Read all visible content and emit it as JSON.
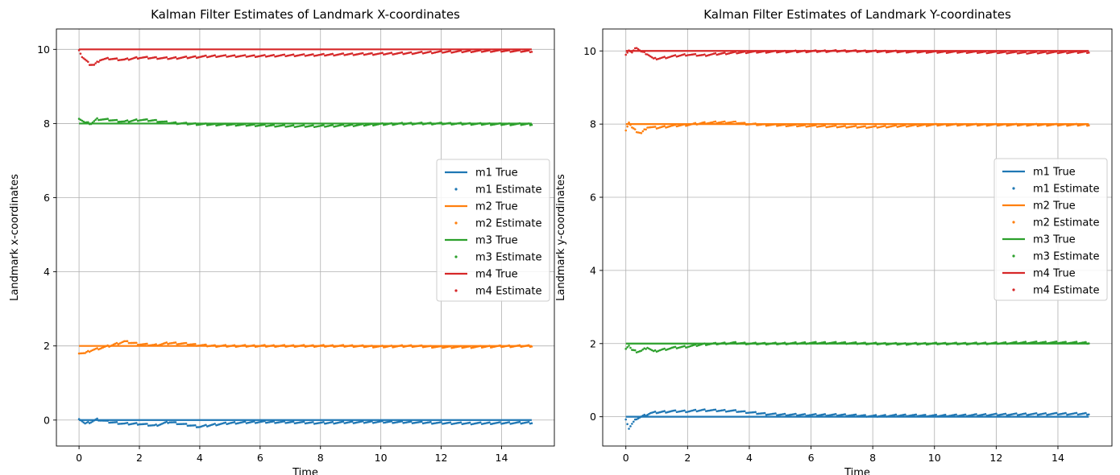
{
  "chart_data": [
    {
      "type": "scatter",
      "title": "Kalman Filter Estimates of Landmark X-coordinates",
      "xlabel": "Time",
      "ylabel": "Landmark x-coordinates",
      "xlim": [
        -0.75,
        15.75
      ],
      "ylim": [
        -0.7,
        10.55
      ],
      "xticks": [
        0,
        2,
        4,
        6,
        8,
        10,
        12,
        14
      ],
      "yticks": [
        0,
        2,
        4,
        6,
        8,
        10
      ],
      "grid": true,
      "legend_position": "center-right",
      "x_range": [
        0,
        15
      ],
      "series": [
        {
          "name": "m1 True",
          "kind": "line",
          "color": "#1f77b4",
          "value": 0
        },
        {
          "name": "m1 Estimate",
          "kind": "points",
          "color": "#1f77b4",
          "x": [
            0,
            0.2,
            0.4,
            0.6,
            1,
            1.5,
            2,
            2.5,
            3,
            3.5,
            4,
            4.5,
            5,
            6,
            7,
            8,
            9,
            10,
            11,
            12,
            13,
            14,
            15
          ],
          "y": [
            0.05,
            -0.1,
            -0.05,
            0.02,
            -0.05,
            -0.1,
            -0.1,
            -0.15,
            -0.05,
            -0.12,
            -0.18,
            -0.12,
            -0.08,
            -0.05,
            -0.06,
            -0.08,
            -0.06,
            -0.05,
            -0.06,
            -0.08,
            -0.09,
            -0.08,
            -0.07
          ]
        },
        {
          "name": "m2 True",
          "kind": "line",
          "color": "#ff7f0e",
          "value": 2
        },
        {
          "name": "m2 Estimate",
          "kind": "points",
          "color": "#ff7f0e",
          "x": [
            0,
            0.2,
            0.4,
            0.6,
            1,
            1.5,
            2,
            2.5,
            3,
            3.5,
            4,
            4.5,
            5,
            6,
            7,
            8,
            9,
            10,
            11,
            12,
            13,
            14,
            15
          ],
          "y": [
            1.82,
            1.8,
            1.88,
            1.92,
            2.0,
            2.12,
            2.05,
            2.02,
            2.08,
            2.06,
            2.02,
            2.0,
            2.0,
            2.0,
            2.0,
            2.0,
            2.0,
            1.98,
            2.0,
            1.97,
            1.97,
            1.99,
            2.0
          ]
        },
        {
          "name": "m3 True",
          "kind": "line",
          "color": "#2ca02c",
          "value": 8
        },
        {
          "name": "m3 Estimate",
          "kind": "points",
          "color": "#2ca02c",
          "x": [
            0,
            0.2,
            0.4,
            0.6,
            1,
            1.5,
            2,
            2.5,
            3,
            3.5,
            4,
            4.5,
            5,
            6,
            7,
            8,
            9,
            10,
            11,
            12,
            13,
            14,
            15
          ],
          "y": [
            8.15,
            8.02,
            8.0,
            8.12,
            8.1,
            8.05,
            8.1,
            8.08,
            8.02,
            8.0,
            7.98,
            7.97,
            7.97,
            7.95,
            7.93,
            7.93,
            7.95,
            7.98,
            8.0,
            8.0,
            7.99,
            7.98,
            7.98
          ]
        },
        {
          "name": "m4 True",
          "kind": "line",
          "color": "#d62728",
          "value": 10
        },
        {
          "name": "m4 Estimate",
          "kind": "points",
          "color": "#d62728",
          "x": [
            0,
            0.1,
            0.2,
            0.35,
            0.5,
            0.7,
            1,
            1.5,
            2,
            2.5,
            3,
            3.5,
            4,
            4.5,
            5,
            6,
            7,
            8,
            9,
            10,
            11,
            12,
            13,
            14,
            15
          ],
          "y": [
            10.0,
            9.8,
            9.72,
            9.6,
            9.58,
            9.72,
            9.75,
            9.72,
            9.78,
            9.77,
            9.76,
            9.78,
            9.8,
            9.82,
            9.82,
            9.82,
            9.84,
            9.85,
            9.87,
            9.88,
            9.9,
            9.93,
            9.95,
            9.96,
            9.95
          ]
        }
      ]
    },
    {
      "type": "scatter",
      "title": "Kalman Filter Estimates of Landmark Y-coordinates",
      "xlabel": "Time",
      "ylabel": "Landmark y-coordinates",
      "xlim": [
        -0.75,
        15.75
      ],
      "ylim": [
        -0.8,
        10.6
      ],
      "xticks": [
        0,
        2,
        4,
        6,
        8,
        10,
        12,
        14
      ],
      "yticks": [
        0,
        2,
        4,
        6,
        8,
        10
      ],
      "grid": true,
      "legend_position": "center-right",
      "x_range": [
        0,
        15
      ],
      "series": [
        {
          "name": "m1 True",
          "kind": "line",
          "color": "#1f77b4",
          "value": 0
        },
        {
          "name": "m1 Estimate",
          "kind": "points",
          "color": "#1f77b4",
          "x": [
            0,
            0.1,
            0.2,
            0.35,
            0.5,
            0.8,
            1,
            1.5,
            2,
            2.5,
            3,
            3.5,
            4,
            4.5,
            5,
            6,
            7,
            8,
            9,
            10,
            11,
            12,
            13,
            14,
            15
          ],
          "y": [
            -0.05,
            -0.32,
            -0.2,
            -0.05,
            0.0,
            0.1,
            0.12,
            0.15,
            0.15,
            0.18,
            0.17,
            0.16,
            0.12,
            0.08,
            0.06,
            0.05,
            0.05,
            0.02,
            0.04,
            0.03,
            0.04,
            0.06,
            0.07,
            0.08,
            0.08
          ]
        },
        {
          "name": "m2 True",
          "kind": "line",
          "color": "#ff7f0e",
          "value": 8
        },
        {
          "name": "m2 Estimate",
          "kind": "points",
          "color": "#ff7f0e",
          "x": [
            0,
            0.1,
            0.2,
            0.35,
            0.5,
            0.7,
            1,
            1.5,
            2,
            2.5,
            3,
            3.5,
            4,
            4.5,
            5,
            6,
            7,
            8,
            9,
            10,
            11,
            12,
            13,
            14,
            15
          ],
          "y": [
            7.85,
            8.05,
            7.9,
            7.8,
            7.75,
            7.92,
            7.9,
            7.95,
            7.98,
            8.03,
            8.05,
            8.05,
            8.0,
            7.98,
            7.97,
            7.95,
            7.93,
            7.92,
            7.95,
            7.98,
            7.98,
            7.98,
            7.98,
            7.98,
            7.98
          ]
        },
        {
          "name": "m3 True",
          "kind": "line",
          "color": "#2ca02c",
          "value": 2
        },
        {
          "name": "m3 Estimate",
          "kind": "points",
          "color": "#2ca02c",
          "x": [
            0,
            0.1,
            0.2,
            0.35,
            0.5,
            0.7,
            0.9,
            1.1,
            1.5,
            2,
            2.5,
            3,
            3.5,
            4,
            5,
            6,
            7,
            8,
            9,
            10,
            11,
            12,
            13,
            14,
            15
          ],
          "y": [
            1.88,
            1.95,
            1.82,
            1.78,
            1.8,
            1.9,
            1.78,
            1.82,
            1.88,
            1.92,
            1.98,
            2.0,
            2.02,
            2.0,
            2.0,
            2.02,
            2.02,
            2.0,
            1.99,
            2.0,
            2.0,
            2.01,
            2.03,
            2.03,
            2.02
          ]
        },
        {
          "name": "m4 True",
          "kind": "line",
          "color": "#d62728",
          "value": 10
        },
        {
          "name": "m4 Estimate",
          "kind": "points",
          "color": "#d62728",
          "x": [
            0,
            0.1,
            0.2,
            0.35,
            0.5,
            0.7,
            0.9,
            1.1,
            1.5,
            2,
            2.5,
            3,
            3.5,
            4,
            5,
            6,
            7,
            8,
            9,
            10,
            11,
            12,
            13,
            14,
            15
          ],
          "y": [
            9.92,
            10.02,
            9.95,
            10.1,
            9.98,
            9.92,
            9.78,
            9.8,
            9.85,
            9.9,
            9.88,
            9.92,
            9.95,
            9.97,
            9.98,
            9.99,
            10.0,
            9.99,
            9.98,
            9.97,
            9.97,
            9.96,
            9.95,
            9.96,
            9.97
          ]
        }
      ]
    }
  ]
}
